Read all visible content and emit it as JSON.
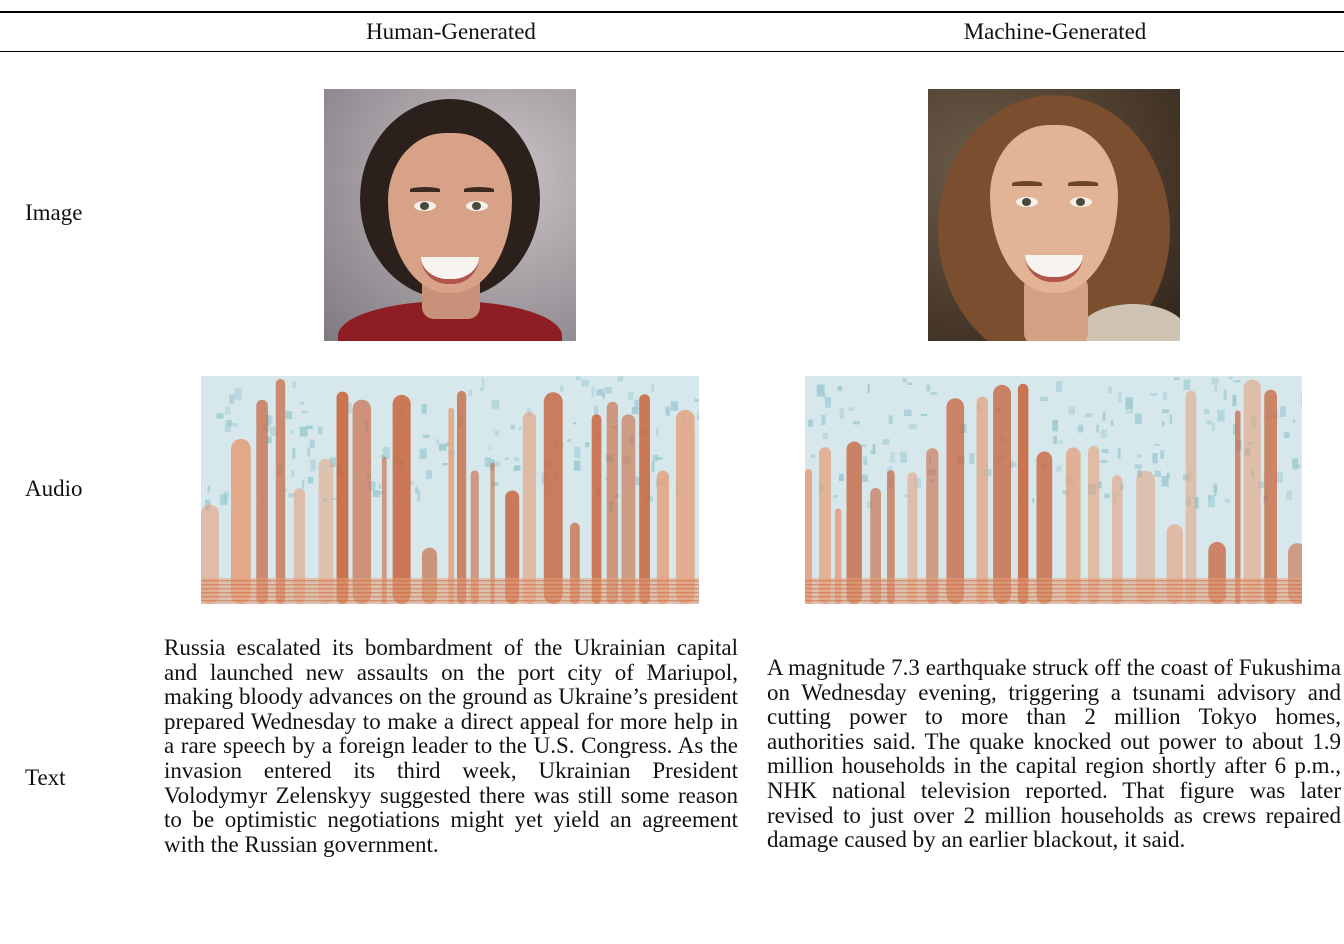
{
  "columns": {
    "human": "Human-Generated",
    "machine": "Machine-Generated"
  },
  "rows": {
    "image": "Image",
    "audio": "Audio",
    "text": "Text"
  },
  "texts": {
    "human": "Russia escalated its bombardment of the Ukrainian capital and launched new assaults on the port city of Mariupol, making bloody advances on the ground as Ukraine’s president prepared Wednesday to make a direct appeal for more help in a rare speech by a foreign leader to the U.S. Congress. As the invasion entered its third week, Ukrainian President Volodymyr Zelenskyy suggested there was still some reason to be optimistic negotiations might yet yield an agreement with the Russian government.",
    "machine": "A magnitude 7.3 earthquake struck off the coast of Fukushima on Wednesday evening, triggering a tsunami advisory and cutting power to more than 2 million Tokyo homes, authorities said. The quake knocked out power to about 1.9 million households in the capital region shortly after 6 p.m., NHK national television reported. That figure was later revised to just over 2 million households as crews repaired damage caused by an earlier blackout, it said."
  },
  "spectrogram_colors": {
    "background": "#d6e8ec",
    "light": "#9cc9d2",
    "energy": "#c8643c",
    "energy_light": "#e3a27f"
  }
}
